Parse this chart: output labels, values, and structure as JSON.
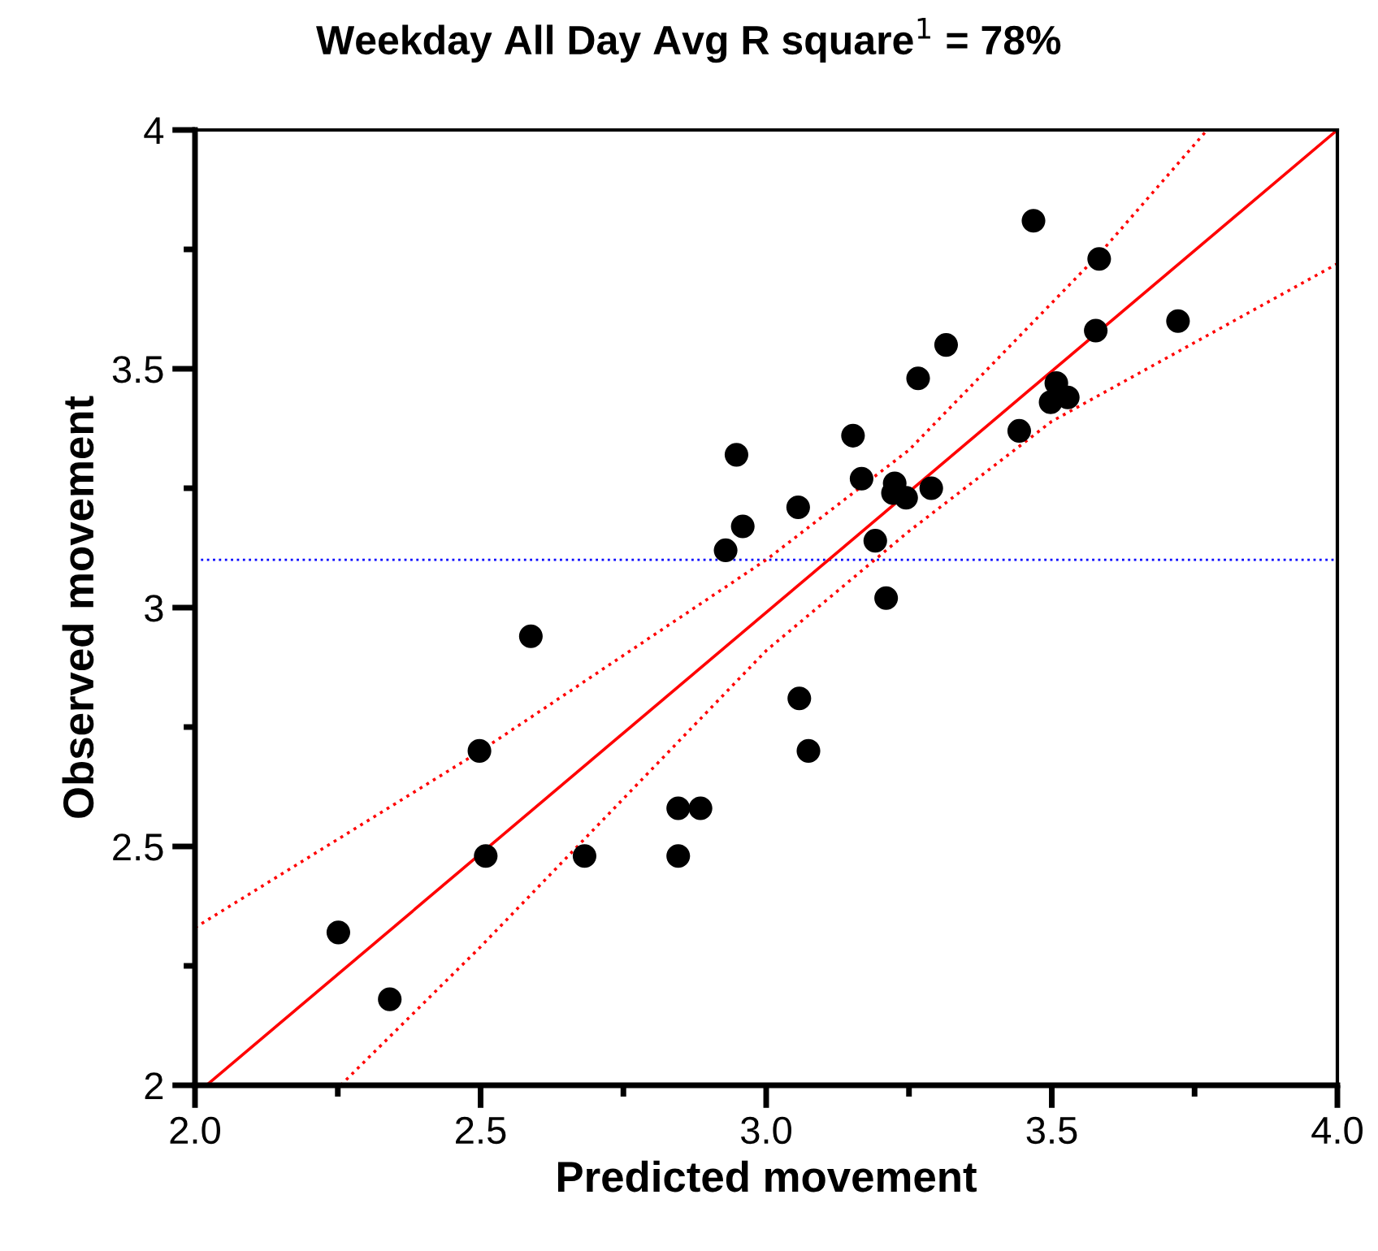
{
  "chart_data": {
    "type": "scatter",
    "title": "Weekday All Day Avg R square$^{1}$ = 78%",
    "xlabel": "Predicted movement",
    "ylabel": "Observed movement",
    "xlim": [
      2.0,
      4.0
    ],
    "ylim": [
      2,
      4
    ],
    "xticks": [
      {
        "value": 2.0,
        "label": "2.0"
      },
      {
        "value": 2.25,
        "label": null
      },
      {
        "value": 2.5,
        "label": "2.5"
      },
      {
        "value": 2.75,
        "label": null
      },
      {
        "value": 3.0,
        "label": "3.0"
      },
      {
        "value": 3.25,
        "label": null
      },
      {
        "value": 3.5,
        "label": "3.5"
      },
      {
        "value": 3.75,
        "label": null
      },
      {
        "value": 4.0,
        "label": "4.0"
      }
    ],
    "yticks": [
      2,
      {
        "value": 2.25,
        "label": null
      },
      2.5,
      {
        "value": 2.75,
        "label": null
      },
      3,
      {
        "value": 3.25,
        "label": null
      },
      3.5,
      {
        "value": 3.75,
        "label": null
      },
      4
    ],
    "grid": false,
    "marker": "circle",
    "series": [
      {
        "color": "#000000",
        "x": [
          3.468,
          3.583,
          3.721,
          3.577,
          3.315,
          3.266,
          3.508,
          3.498,
          3.528,
          3.443,
          3.152,
          2.948,
          3.167,
          3.225,
          3.222,
          3.245,
          3.289,
          3.056,
          2.959,
          2.929,
          3.191,
          3.21,
          2.588,
          2.498,
          3.058,
          3.074,
          2.846,
          2.885,
          2.846,
          2.682,
          2.509,
          2.251,
          2.341
        ],
        "values": [
          3.81,
          3.73,
          3.6,
          3.58,
          3.55,
          3.48,
          3.47,
          3.43,
          3.44,
          3.37,
          3.36,
          3.32,
          3.27,
          3.26,
          3.24,
          3.23,
          3.25,
          3.21,
          3.17,
          3.12,
          3.14,
          3.02,
          2.94,
          2.7,
          2.81,
          2.7,
          2.58,
          2.58,
          2.48,
          2.48,
          2.48,
          2.32,
          2.18
        ]
      },
      {
        "type": "line",
        "color": "#ff0000",
        "line_style": "solid",
        "marker": "none",
        "x": [
          2.02,
          4.0
        ],
        "values": [
          2.0,
          4.0
        ]
      },
      {
        "type": "line",
        "color": "#ff0000",
        "line_style": "dotted",
        "marker": "none",
        "x": [
          2.0,
          2.5,
          3.0,
          3.25,
          3.583,
          3.772
        ],
        "values": [
          2.33,
          2.7,
          3.1,
          3.33,
          3.74,
          4.0
        ]
      },
      {
        "type": "line",
        "color": "#ff0000",
        "line_style": "dotted",
        "marker": "none",
        "x": [
          2.255,
          2.5,
          3.0,
          3.25,
          3.5,
          4.0
        ],
        "values": [
          2.0,
          2.29,
          2.91,
          3.16,
          3.39,
          3.72
        ]
      }
    ],
    "ref_lines": [
      {
        "axis": "y",
        "value": 3.1,
        "color": "#0000ff",
        "line_style": "dotted"
      }
    ]
  }
}
